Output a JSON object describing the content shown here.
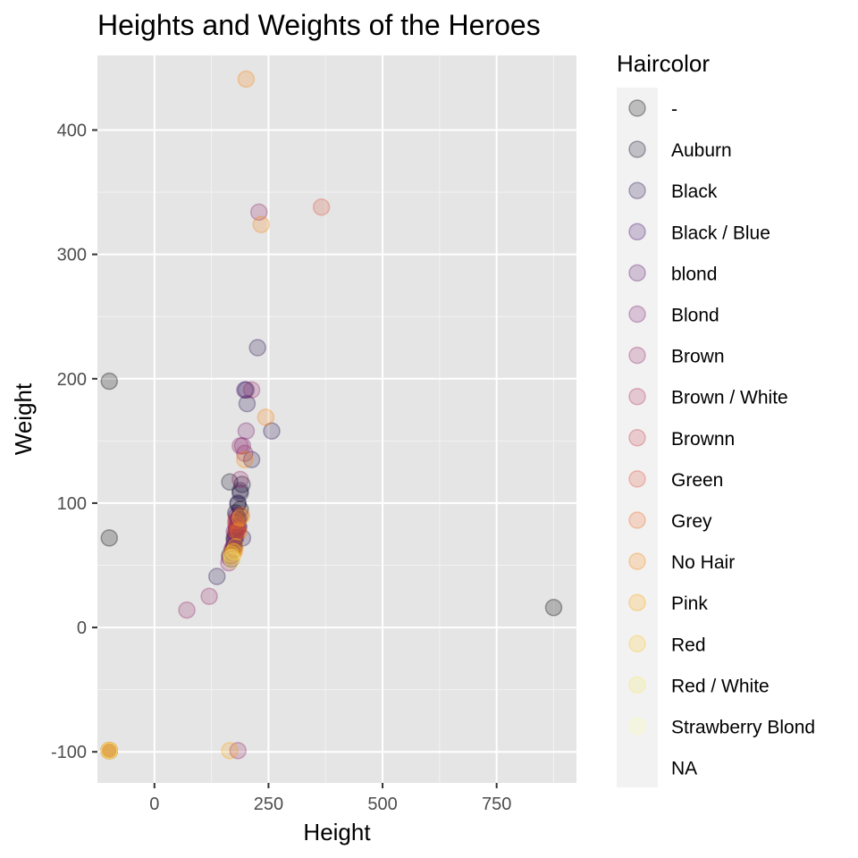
{
  "chart_data": {
    "type": "scatter",
    "title": "Heights and Weights of the Heroes",
    "xlabel": "Height",
    "ylabel": "Weight",
    "xlim": [
      -125,
      925
    ],
    "ylim": [
      -125,
      460
    ],
    "x_ticks": [
      0,
      250,
      500,
      750
    ],
    "x_tick_labels": [
      "0",
      "250",
      "500",
      "750"
    ],
    "y_ticks": [
      -100,
      0,
      100,
      200,
      300,
      400
    ],
    "y_tick_labels": [
      "-100",
      "0",
      "100",
      "200",
      "300",
      "400"
    ],
    "grid": true,
    "legend": {
      "title": "Haircolor",
      "placement": "right",
      "entries": [
        "-",
        "Auburn",
        "Black",
        "Black / Blue",
        "blond",
        "Blond",
        "Brown",
        "Brown / White",
        "Brownn",
        "Green",
        "Grey",
        "No Hair",
        "Pink",
        "Red",
        "Red / White",
        "Strawberry Blond",
        "NA"
      ]
    },
    "colors": [
      "#000004",
      "#0c0826",
      "#240c4f",
      "#420a68",
      "#5d126e",
      "#781c6d",
      "#932667",
      "#ae305c",
      "#c73e4c",
      "#dc5039",
      "#ed6925",
      "#f8850f",
      "#fca50a",
      "#fac62d",
      "#f2e661",
      "#fcffa4",
      "#808080"
    ],
    "point_opacity": 0.22,
    "series": [
      {
        "name": "-",
        "points": [
          [
            -99,
            198
          ],
          [
            -99,
            72
          ],
          [
            -99,
            -99
          ],
          [
            875,
            16
          ],
          [
            180,
            79
          ],
          [
            183,
            86
          ],
          [
            188,
            95
          ],
          [
            175,
            72
          ],
          [
            165,
            58
          ],
          [
            173,
            63
          ]
        ]
      },
      {
        "name": "Auburn",
        "points": [
          [
            -99,
            -99
          ],
          [
            165,
            117
          ],
          [
            183,
            100
          ],
          [
            188,
            108
          ],
          [
            192,
            115
          ],
          [
            178,
            92
          ],
          [
            175,
            66
          ]
        ]
      },
      {
        "name": "Black",
        "points": [
          [
            -99,
            -99
          ],
          [
            226,
            225
          ],
          [
            201,
            191
          ],
          [
            203,
            180
          ],
          [
            257,
            158
          ],
          [
            213,
            135
          ],
          [
            137,
            41
          ],
          [
            183,
            99
          ],
          [
            188,
            110
          ],
          [
            185,
            88
          ],
          [
            178,
            76
          ],
          [
            180,
            81
          ],
          [
            175,
            70
          ],
          [
            193,
            72
          ],
          [
            170,
            61
          ],
          [
            168,
            55
          ]
        ]
      },
      {
        "name": "Black / Blue",
        "points": [
          [
            -99,
            -99
          ],
          [
            198,
            191
          ],
          [
            185,
            81
          ],
          [
            180,
            90
          ]
        ]
      },
      {
        "name": "blond",
        "points": [
          [
            -99,
            -99
          ],
          [
            183,
            80
          ],
          [
            178,
            72
          ]
        ]
      },
      {
        "name": "Blond",
        "points": [
          [
            -99,
            -99
          ],
          [
            201,
            158
          ],
          [
            193,
            146
          ],
          [
            180,
            86
          ],
          [
            175,
            77
          ],
          [
            170,
            63
          ],
          [
            165,
            56
          ],
          [
            183,
            88
          ],
          [
            188,
            90
          ]
        ]
      },
      {
        "name": "Brown",
        "points": [
          [
            -99,
            -99
          ],
          [
            229,
            334
          ],
          [
            213,
            191
          ],
          [
            188,
            146
          ],
          [
            198,
            140
          ],
          [
            188,
            119
          ],
          [
            183,
            81
          ],
          [
            178,
            74
          ],
          [
            173,
            65
          ],
          [
            168,
            57
          ],
          [
            163,
            52
          ],
          [
            180,
            78
          ],
          [
            120,
            25
          ],
          [
            71,
            14
          ],
          [
            183,
            -99
          ]
        ]
      },
      {
        "name": "Brown / White",
        "points": [
          [
            -99,
            -99
          ],
          [
            175,
            63
          ],
          [
            183,
            79
          ]
        ]
      },
      {
        "name": "Brownn",
        "points": [
          [
            -99,
            -99
          ],
          [
            178,
            83
          ]
        ]
      },
      {
        "name": "Green",
        "points": [
          [
            -99,
            -99
          ],
          [
            366,
            338
          ],
          [
            178,
            86
          ]
        ]
      },
      {
        "name": "Grey",
        "points": [
          [
            -99,
            -99
          ],
          [
            180,
            77
          ]
        ]
      },
      {
        "name": "No Hair",
        "points": [
          [
            -99,
            -99
          ],
          [
            201,
            441
          ],
          [
            234,
            324
          ],
          [
            244,
            169
          ],
          [
            198,
            135
          ],
          [
            191,
            90
          ],
          [
            185,
            77
          ],
          [
            175,
            61
          ]
        ]
      },
      {
        "name": "Pink",
        "points": [
          [
            -99,
            -99
          ],
          [
            170,
            57
          ],
          [
            165,
            -99
          ]
        ]
      },
      {
        "name": "Red",
        "points": [
          [
            -99,
            -99
          ],
          [
            173,
            61
          ],
          [
            178,
            65
          ],
          [
            168,
            59
          ],
          [
            188,
            88
          ]
        ]
      },
      {
        "name": "Red / White",
        "points": [
          [
            -99,
            -99
          ],
          [
            170,
            54
          ]
        ]
      },
      {
        "name": "Strawberry Blond",
        "points": [
          [
            -99,
            -99
          ],
          [
            168,
            56
          ]
        ]
      },
      {
        "name": "NA",
        "points": []
      }
    ]
  }
}
